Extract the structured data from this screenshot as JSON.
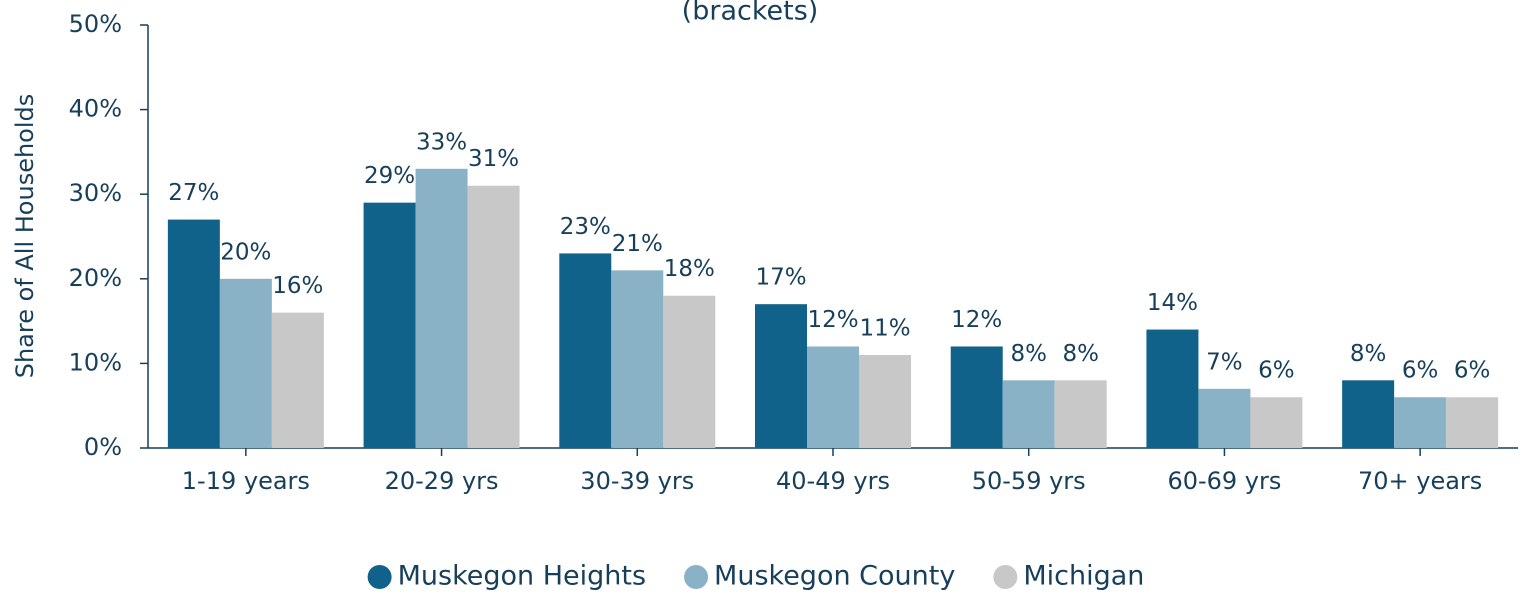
{
  "chart_data": {
    "type": "bar",
    "title": "(brackets)",
    "y_label": "Share of All Households",
    "categories": [
      "1-19 years",
      "20-29 yrs",
      "30-39 yrs",
      "40-49 yrs",
      "50-59 yrs",
      "60-69 yrs",
      "70+ years"
    ],
    "series": [
      {
        "name": "Muskegon Heights",
        "color": "#10628a",
        "values": [
          27,
          29,
          23,
          17,
          12,
          14,
          8
        ],
        "value_labels": [
          "27%",
          "29%",
          "23%",
          "17%",
          "12%",
          "14%",
          "8%"
        ]
      },
      {
        "name": "Muskegon County",
        "color": "#89b2c6",
        "values": [
          20,
          33,
          21,
          12,
          8,
          7,
          6
        ],
        "value_labels": [
          "20%",
          "33%",
          "21%",
          "12%",
          "8%",
          "7%",
          "6%"
        ]
      },
      {
        "name": "Michigan",
        "color": "#c8c8c8",
        "values": [
          16,
          31,
          18,
          11,
          8,
          6,
          6
        ],
        "value_labels": [
          "16%",
          "31%",
          "18%",
          "11%",
          "8%",
          "6%",
          "6%"
        ]
      }
    ],
    "ylim": [
      0,
      50
    ],
    "yticks": [
      {
        "value": 0,
        "label": "0%"
      },
      {
        "value": 10,
        "label": "10%"
      },
      {
        "value": 20,
        "label": "20%"
      },
      {
        "value": 30,
        "label": "30%"
      },
      {
        "value": 40,
        "label": "40%"
      },
      {
        "value": 50,
        "label": "50%"
      }
    ],
    "legend": "bottom"
  }
}
